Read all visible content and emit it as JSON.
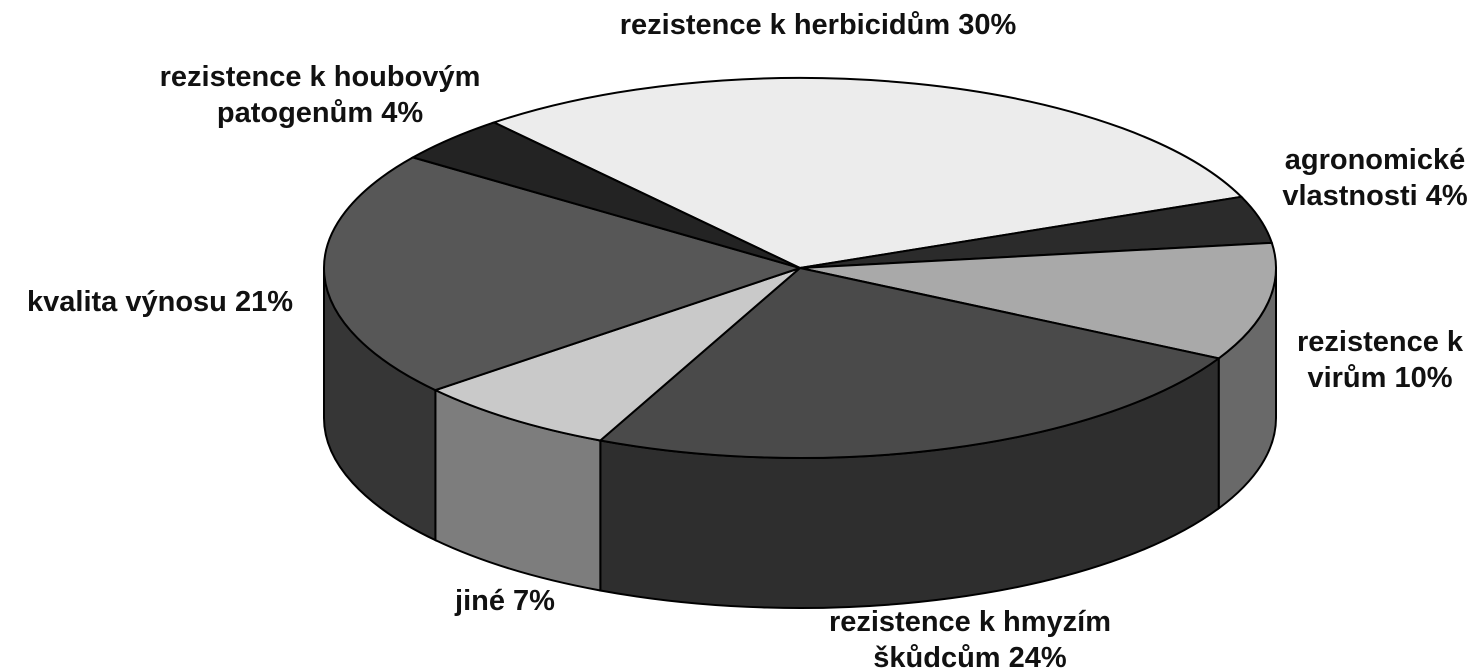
{
  "chart_data": {
    "type": "pie",
    "categories": [
      "rezistence k herbicidům",
      "agronomické vlastnosti",
      "rezistence k virům",
      "rezistence k hmyzím škůdcům",
      "jiné",
      "kvalita výnosu",
      "rezistence k houbovým patogenům"
    ],
    "values": [
      30,
      4,
      10,
      24,
      7,
      21,
      4
    ],
    "value_labels": [
      "30%",
      "4%",
      "10%",
      "24%",
      "7%",
      "21%",
      "4%"
    ],
    "colors": [
      "#ececec",
      "#2b2b2b",
      "#a9a9a9",
      "#4a4a4a",
      "#c9c9c9",
      "#575757",
      "#232323"
    ]
  }
}
